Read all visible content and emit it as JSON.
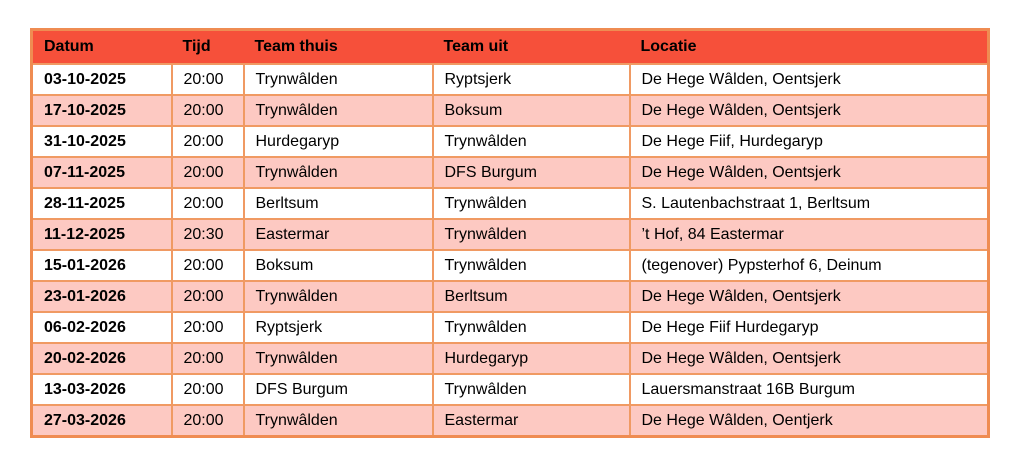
{
  "colors": {
    "header_bg": "#f6503a",
    "row_bg": "#ffffff",
    "row_alt_bg": "#fdc9c2",
    "grid_border": "#ef8c52",
    "text": "#000000",
    "page_bg": "#ffffff"
  },
  "table": {
    "columns": [
      {
        "key": "datum",
        "label": "Datum"
      },
      {
        "key": "tijd",
        "label": "Tijd"
      },
      {
        "key": "team_thuis",
        "label": "Team thuis"
      },
      {
        "key": "team_uit",
        "label": "Team uit"
      },
      {
        "key": "locatie",
        "label": "Locatie"
      }
    ],
    "rows": [
      {
        "datum": "03-10-2025",
        "tijd": "20:00",
        "team_thuis": "Trynwâlden",
        "team_uit": "Ryptsjerk",
        "locatie": "De Hege Wâlden, Oentsjerk"
      },
      {
        "datum": "17-10-2025",
        "tijd": "20:00",
        "team_thuis": "Trynwâlden",
        "team_uit": "Boksum",
        "locatie": "De Hege Wâlden, Oentsjerk"
      },
      {
        "datum": "31-10-2025",
        "tijd": "20:00",
        "team_thuis": "Hurdegaryp",
        "team_uit": "Trynwâlden",
        "locatie": "De Hege Fiif, Hurdegaryp"
      },
      {
        "datum": "07-11-2025",
        "tijd": "20:00",
        "team_thuis": "Trynwâlden",
        "team_uit": "DFS Burgum",
        "locatie": "De Hege Wâlden, Oentsjerk"
      },
      {
        "datum": "28-11-2025",
        "tijd": "20:00",
        "team_thuis": "Berltsum",
        "team_uit": "Trynwâlden",
        "locatie": "S. Lautenbachstraat 1, Berltsum"
      },
      {
        "datum": "11-12-2025",
        "tijd": "20:30",
        "team_thuis": "Eastermar",
        "team_uit": "Trynwâlden",
        "locatie": "’t Hof, 84 Eastermar"
      },
      {
        "datum": "15-01-2026",
        "tijd": "20:00",
        "team_thuis": "Boksum",
        "team_uit": "Trynwâlden",
        "locatie": "(tegenover) Pypsterhof 6, Deinum"
      },
      {
        "datum": "23-01-2026",
        "tijd": "20:00",
        "team_thuis": "Trynwâlden",
        "team_uit": "Berltsum",
        "locatie": "De Hege Wâlden, Oentsjerk"
      },
      {
        "datum": "06-02-2026",
        "tijd": "20:00",
        "team_thuis": "Ryptsjerk",
        "team_uit": "Trynwâlden",
        "locatie": "De Hege Fiif Hurdegaryp"
      },
      {
        "datum": "20-02-2026",
        "tijd": "20:00",
        "team_thuis": "Trynwâlden",
        "team_uit": "Hurdegaryp",
        "locatie": "De Hege Wâlden, Oentsjerk"
      },
      {
        "datum": "13-03-2026",
        "tijd": "20:00",
        "team_thuis": "DFS Burgum",
        "team_uit": "Trynwâlden",
        "locatie": "Lauersmanstraat 16B Burgum"
      },
      {
        "datum": "27-03-2026",
        "tijd": "20:00",
        "team_thuis": "Trynwâlden",
        "team_uit": "Eastermar",
        "locatie": "De Hege Wâlden, Oentjerk"
      }
    ]
  }
}
